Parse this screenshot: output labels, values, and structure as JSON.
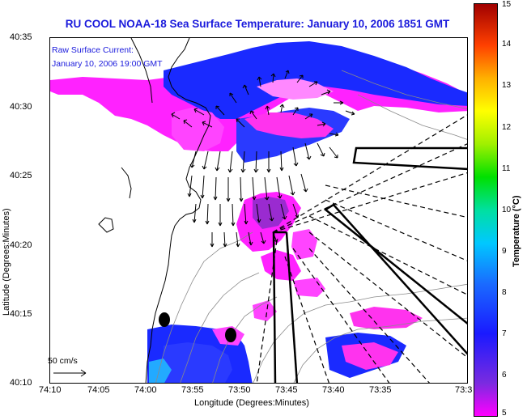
{
  "title": "RU COOL  NOAA-18  Sea Surface Temperature:  January 10, 2006 1851 GMT",
  "annotation": {
    "line1": "Raw Surface Current:",
    "line2": "January 10, 2006 19:00 GMT"
  },
  "scale_label": "50 cm/s",
  "xlabel": "Longitude (Degrees:Minutes)",
  "ylabel": "Latitude (Degrees:Minutes)",
  "x_ticks": [
    "74:10",
    "74:05",
    "74:00",
    "73:55",
    "73:50",
    "73:45",
    "73:40",
    "73:35",
    "73:3"
  ],
  "y_ticks": [
    "40:35",
    "40:30",
    "40:25",
    "40:20",
    "40:15",
    "40:10"
  ],
  "colorbar": {
    "label": "Temperature (°C)",
    "ticks": [
      "15",
      "14",
      "13",
      "12",
      "11",
      "10",
      "9",
      "8",
      "7",
      "6",
      "5"
    ],
    "min": 5,
    "max": 15
  },
  "colors": {
    "title": "#1a1adc",
    "warm": "#ff00ff",
    "cold": "#1a2aff"
  }
}
